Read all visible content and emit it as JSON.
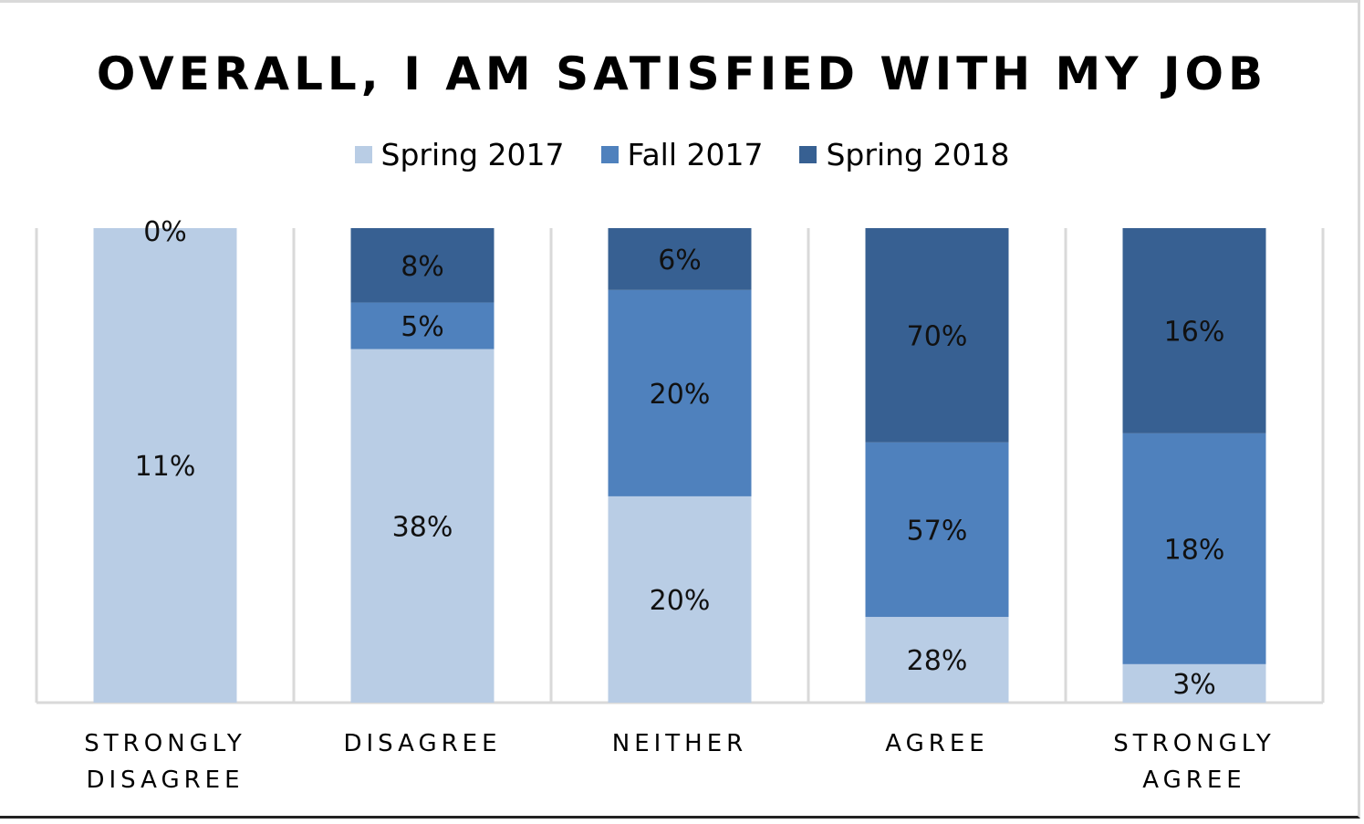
{
  "chart_data": {
    "type": "bar",
    "stacked": "percent",
    "title": "OVERALL, I AM SATISFIED WITH MY JOB",
    "xlabel": "",
    "ylabel": "",
    "ylim": [
      0,
      100
    ],
    "grid": "vertical",
    "legend_position": "top",
    "categories": [
      [
        "STRONGLY",
        "DISAGREE"
      ],
      [
        "DISAGREE"
      ],
      [
        "NEITHER"
      ],
      [
        "AGREE"
      ],
      [
        "STRONGLY",
        "AGREE"
      ]
    ],
    "series": [
      {
        "name": "Spring 2017",
        "color": "#b9cde5",
        "values": [
          11,
          38,
          20,
          28,
          3
        ],
        "labels": [
          "11%",
          "38%",
          "20%",
          "28%",
          "3%"
        ]
      },
      {
        "name": "Fall 2017",
        "color": "#4f81bd",
        "values": [
          0,
          5,
          20,
          57,
          18
        ],
        "labels": [
          "",
          "5%",
          "20%",
          "57%",
          "18%"
        ]
      },
      {
        "name": "Spring 2018",
        "color": "#376092",
        "values": [
          0,
          8,
          6,
          70,
          16
        ],
        "labels": [
          "0%",
          "8%",
          "6%",
          "70%",
          "16%"
        ]
      }
    ]
  }
}
